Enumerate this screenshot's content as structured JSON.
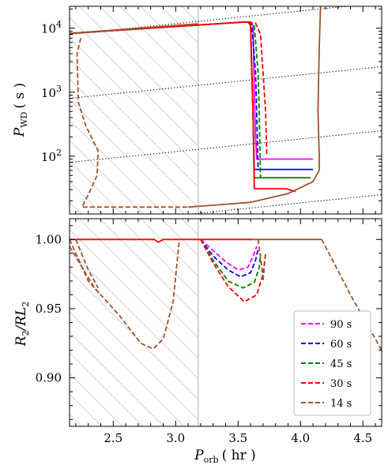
{
  "chart_data": [
    {
      "type": "line",
      "panel": "top",
      "xlabel": "",
      "ylabel": "P_WD ( s )",
      "ylabel_parts": {
        "main": "P",
        "sub": "WD",
        "unit": "( s )"
      },
      "yscale": "log",
      "xlim": [
        2.15,
        4.65
      ],
      "ylim": [
        12.5,
        22000
      ],
      "yticks": [
        100,
        1000,
        10000
      ],
      "ytick_labels": [
        {
          "base": "10",
          "exp": "2"
        },
        {
          "base": "10",
          "exp": "3"
        },
        {
          "base": "10",
          "exp": "4"
        }
      ],
      "grid": false,
      "hatch_region_x": [
        2.15,
        3.18
      ],
      "vline_x": 3.18,
      "reference_lines": [
        {
          "style": "dotted",
          "color": "#000000",
          "points": [
            [
              2.15,
              8000
            ],
            [
              4.65,
              25000
            ]
          ]
        },
        {
          "style": "dotted",
          "color": "#000000",
          "points": [
            [
              2.15,
              800
            ],
            [
              4.65,
              2500
            ]
          ]
        },
        {
          "style": "dotted",
          "color": "#000000",
          "points": [
            [
              2.15,
              80
            ],
            [
              4.65,
              250
            ]
          ]
        },
        {
          "style": "dotted",
          "color": "#000000",
          "points": [
            [
              2.15,
              8
            ],
            [
              4.65,
              25
            ]
          ]
        }
      ],
      "series": [
        {
          "name": "90 s",
          "color": "#ff00ff",
          "segments": [
            {
              "style": "solid",
              "points": [
                [
                  2.15,
                  8300
                ],
                [
                  3.55,
                  12500
                ],
                [
                  3.6,
                  12500
                ],
                [
                  3.62,
                  11000
                ],
                [
                  3.63,
                  1000
                ],
                [
                  3.64,
                  200
                ],
                [
                  3.65,
                  90
                ],
                [
                  4.1,
                  90
                ]
              ]
            }
          ]
        },
        {
          "name": "60 s",
          "color": "#0000ff",
          "segments": [
            {
              "style": "solid",
              "points": [
                [
                  2.15,
                  8300
                ],
                [
                  3.55,
                  12500
                ],
                [
                  3.58,
                  12500
                ],
                [
                  3.6,
                  11000
                ],
                [
                  3.61,
                  2000
                ],
                [
                  3.62,
                  400
                ],
                [
                  3.63,
                  62
                ],
                [
                  4.1,
                  62
                ]
              ]
            },
            {
              "style": "dashed",
              "points": [
                [
                  3.58,
                  12500
                ],
                [
                  3.61,
                  11000
                ],
                [
                  3.64,
                  2000
                ],
                [
                  3.65,
                  400
                ],
                [
                  3.66,
                  62
                ]
              ]
            }
          ]
        },
        {
          "name": "45 s",
          "color": "#008000",
          "segments": [
            {
              "style": "solid",
              "points": [
                [
                  2.15,
                  8300
                ],
                [
                  3.55,
                  12500
                ],
                [
                  3.58,
                  12500
                ],
                [
                  3.6,
                  11000
                ],
                [
                  3.61,
                  2000
                ],
                [
                  3.62,
                  400
                ],
                [
                  3.63,
                  46
                ],
                [
                  4.08,
                  46
                ]
              ]
            },
            {
              "style": "dashed",
              "points": [
                [
                  3.58,
                  12500
                ],
                [
                  3.63,
                  11000
                ],
                [
                  3.66,
                  2000
                ],
                [
                  3.67,
                  400
                ],
                [
                  3.68,
                  46
                ]
              ]
            }
          ]
        },
        {
          "name": "30 s",
          "color": "#ff0000",
          "segments": [
            {
              "style": "solid",
              "points": [
                [
                  2.15,
                  8300
                ],
                [
                  3.55,
                  12500
                ],
                [
                  3.58,
                  12500
                ],
                [
                  3.6,
                  11000
                ],
                [
                  3.61,
                  2000
                ],
                [
                  3.62,
                  400
                ],
                [
                  3.63,
                  31
                ],
                [
                  3.88,
                  31
                ],
                [
                  3.96,
                  28
                ]
              ]
            },
            {
              "style": "dashed",
              "points": [
                [
                  3.58,
                  12500
                ],
                [
                  3.64,
                  12000
                ],
                [
                  3.68,
                  8000
                ],
                [
                  3.7,
                  2000
                ],
                [
                  3.72,
                  500
                ],
                [
                  3.73,
                  100
                ]
              ]
            }
          ]
        },
        {
          "name": "14 s",
          "color": "#a0522d",
          "segments": [
            {
              "style": "solid",
              "points": [
                [
                  2.15,
                  8300
                ],
                [
                  3.18,
                  11700
                ]
              ]
            },
            {
              "style": "dashed",
              "points": [
                [
                  2.24,
                  7000
                ],
                [
                  2.21,
                  4000
                ],
                [
                  2.22,
                  700
                ],
                [
                  2.28,
                  300
                ],
                [
                  2.38,
                  120
                ],
                [
                  2.37,
                  50
                ],
                [
                  2.3,
                  25
                ],
                [
                  2.25,
                  16
                ],
                [
                  2.7,
                  16
                ],
                [
                  3.1,
                  16
                ]
              ]
            },
            {
              "style": "solid",
              "points": [
                [
                  3.1,
                  16
                ],
                [
                  3.6,
                  19
                ],
                [
                  3.9,
                  26
                ],
                [
                  4.1,
                  40
                ],
                [
                  4.15,
                  60
                ],
                [
                  4.15,
                  100
                ],
                [
                  4.14,
                  500
                ],
                [
                  4.15,
                  5000
                ],
                [
                  4.16,
                  22000
                ]
              ]
            }
          ]
        }
      ]
    },
    {
      "type": "line",
      "panel": "bottom",
      "xlabel": "P_orb ( hr )",
      "xlabel_parts": {
        "main": "P",
        "sub": "orb",
        "unit": "( hr )"
      },
      "ylabel": "R_2/RL_2",
      "ylabel_parts": {
        "a": "R",
        "a_sub": "2",
        "b": "/RL",
        "b_sub": "2"
      },
      "xlim": [
        2.15,
        4.65
      ],
      "ylim": [
        0.865,
        1.015
      ],
      "xticks": [
        2.5,
        3.0,
        3.5,
        4.0,
        4.5
      ],
      "xtick_labels": [
        "2.5",
        "3.0",
        "3.5",
        "4.0",
        "4.5"
      ],
      "yticks": [
        0.9,
        0.95,
        1.0
      ],
      "ytick_labels": [
        "0.90",
        "0.95",
        "1.00"
      ],
      "grid": false,
      "hatch_region_x": [
        2.15,
        3.18
      ],
      "vline_x": 3.18,
      "legend": {
        "placement": "lower-right",
        "entries": [
          "90 s",
          "60 s",
          "45 s",
          "30 s",
          "14 s"
        ]
      },
      "series": [
        {
          "name": "90 s",
          "color": "#ff00ff",
          "segments": [
            {
              "style": "dashed",
              "points": [
                [
                  3.2,
                  1.0
                ],
                [
                  3.3,
                  0.992
                ],
                [
                  3.4,
                  0.984
                ],
                [
                  3.5,
                  0.978
                ],
                [
                  3.58,
                  0.98
                ],
                [
                  3.63,
                  0.99
                ],
                [
                  3.65,
                  0.995
                ]
              ]
            }
          ]
        },
        {
          "name": "60 s",
          "color": "#0000ff",
          "segments": [
            {
              "style": "dashed",
              "points": [
                [
                  3.2,
                  1.0
                ],
                [
                  3.3,
                  0.988
                ],
                [
                  3.42,
                  0.978
                ],
                [
                  3.52,
                  0.973
                ],
                [
                  3.6,
                  0.976
                ],
                [
                  3.64,
                  0.985
                ],
                [
                  3.66,
                  0.993
                ]
              ]
            }
          ]
        },
        {
          "name": "45 s",
          "color": "#008000",
          "segments": [
            {
              "style": "dashed",
              "points": [
                [
                  3.2,
                  1.0
                ],
                [
                  3.3,
                  0.985
                ],
                [
                  3.42,
                  0.97
                ],
                [
                  3.54,
                  0.965
                ],
                [
                  3.63,
                  0.969
                ],
                [
                  3.67,
                  0.98
                ],
                [
                  3.68,
                  0.99
                ]
              ]
            }
          ]
        },
        {
          "name": "30 s",
          "color": "#ff0000",
          "segments": [
            {
              "style": "solid",
              "points": [
                [
                  2.15,
                  1.0
                ],
                [
                  2.83,
                  1.0
                ],
                [
                  2.86,
                  0.998
                ],
                [
                  2.9,
                  1.0
                ],
                [
                  3.62,
                  1.0
                ]
              ]
            },
            {
              "style": "dashed",
              "points": [
                [
                  3.2,
                  1.0
                ],
                [
                  3.3,
                  0.983
                ],
                [
                  3.42,
                  0.966
                ],
                [
                  3.55,
                  0.955
                ],
                [
                  3.65,
                  0.96
                ],
                [
                  3.7,
                  0.975
                ],
                [
                  3.72,
                  0.99
                ]
              ]
            }
          ]
        },
        {
          "name": "14 s",
          "color": "#a0522d",
          "segments": [
            {
              "style": "solid",
              "points": [
                [
                  3.62,
                  1.0
                ],
                [
                  4.17,
                  1.0
                ]
              ]
            },
            {
              "style": "dashed",
              "points": [
                [
                  2.15,
                  1.0
                ],
                [
                  2.3,
                  0.97
                ],
                [
                  2.4,
                  0.96
                ]
              ]
            },
            {
              "style": "dashed",
              "points": [
                [
                  2.2,
                  1.0
                ],
                [
                  2.3,
                  0.978
                ],
                [
                  2.38,
                  0.965
                ]
              ]
            },
            {
              "style": "dashed",
              "points": [
                [
                  2.15,
                  0.995
                ],
                [
                  2.35,
                  0.965
                ],
                [
                  2.55,
                  0.945
                ],
                [
                  2.72,
                  0.925
                ],
                [
                  2.82,
                  0.921
                ],
                [
                  2.9,
                  0.928
                ],
                [
                  2.98,
                  0.955
                ],
                [
                  3.03,
                  1.0
                ]
              ]
            },
            {
              "style": "dashed",
              "points": [
                [
                  3.66,
                  1.0
                ],
                [
                  3.69,
                  0.98
                ],
                [
                  3.7,
                  0.97
                ],
                [
                  3.72,
                  0.99
                ]
              ]
            },
            {
              "style": "dashed",
              "points": [
                [
                  4.17,
                  1.0
                ],
                [
                  4.4,
                  0.96
                ],
                [
                  4.65,
                  0.92
                ]
              ]
            }
          ]
        }
      ]
    }
  ]
}
